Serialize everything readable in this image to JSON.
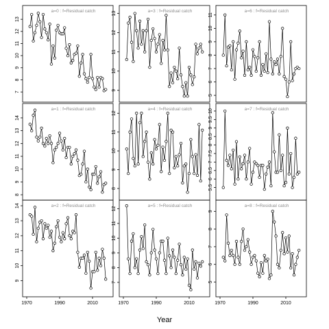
{
  "figure": {
    "xlabel": "Year"
  },
  "chart_data": [
    {
      "panel": "a0",
      "type": "line",
      "label": "a=0 : f=Residual catch",
      "xlim": [
        1970,
        2020
      ],
      "ylim": [
        6.5,
        13.8
      ],
      "yticks": [
        7,
        8,
        9,
        10,
        11,
        12,
        13
      ],
      "xticks": [
        1970,
        1990,
        2010
      ],
      "show_xticks": false,
      "x": [
        1972,
        1973,
        1974,
        1975,
        1976,
        1977,
        1978,
        1979,
        1980,
        1981,
        1982,
        1983,
        1984,
        1985,
        1986,
        1987,
        1988,
        1989,
        1990,
        1991,
        1992,
        1993,
        1994,
        1995,
        1996,
        1997,
        1998,
        1999,
        2000,
        2001,
        2002,
        2003,
        2004,
        2005,
        2006,
        2007,
        2008,
        2009,
        2010,
        2011,
        2012,
        2013,
        2014,
        2015,
        2016,
        2017,
        2018
      ],
      "y": [
        12.4,
        13.4,
        11.2,
        11.9,
        12.5,
        13.5,
        12.8,
        11.5,
        13.4,
        12.2,
        11.9,
        11.3,
        12.6,
        9.3,
        10.8,
        9.8,
        12.1,
        12.5,
        11.9,
        11.8,
        11.8,
        12.3,
        10.6,
        10.0,
        10.9,
        9.4,
        9.6,
        10.1,
        10.2,
        10.8,
        8.3,
        9.4,
        10.1,
        8.5,
        8.1,
        7.8,
        8.2,
        10.1,
        8.1,
        7.4,
        7.2,
        8.2,
        7.4,
        8.2,
        8.1,
        7.1,
        7.2
      ]
    },
    {
      "panel": "a3",
      "type": "line",
      "label": "a=3 : f=Residual catch",
      "xlim": [
        1970,
        2020
      ],
      "ylim": [
        8.6,
        13.2
      ],
      "yticks": [
        9,
        10,
        11,
        12,
        13
      ],
      "xticks": [
        1970,
        1990,
        2010
      ],
      "show_xticks": false,
      "x": [
        1972,
        1973,
        1974,
        1975,
        1976,
        1977,
        1978,
        1979,
        1980,
        1981,
        1982,
        1983,
        1984,
        1985,
        1986,
        1987,
        1988,
        1989,
        1990,
        1991,
        1992,
        1993,
        1994,
        1995,
        1996,
        1997,
        1998,
        1999,
        2000,
        2001,
        2002,
        2003,
        2004,
        2005,
        2006,
        2007,
        2008,
        2009,
        2010,
        2011,
        2012,
        2013,
        2014,
        2015,
        2016,
        2017,
        2018
      ],
      "y": [
        10.6,
        12.5,
        12.8,
        11.5,
        10.5,
        13.0,
        12.1,
        11.2,
        12.6,
        11.4,
        12.1,
        11.0,
        12.1,
        12.7,
        10.2,
        11.6,
        12.2,
        11.7,
        11.0,
        11.4,
        11.9,
        10.4,
        11.6,
        11.1,
        12.9,
        11.1,
        9.2,
        9.9,
        9.4,
        10.2,
        10.0,
        9.6,
        11.2,
        9.8,
        9.2,
        8.7,
        9.4,
        8.7,
        10.2,
        9.8,
        9.3,
        9.7,
        11.4,
        10.9,
        11.2,
        11.4,
        11.0
      ]
    },
    {
      "panel": "a6",
      "type": "line",
      "label": "a=6 : f=Residual catch",
      "xlim": [
        1970,
        2020
      ],
      "ylim": [
        4.8,
        11.4
      ],
      "yticks": [
        5,
        6,
        7,
        8,
        9,
        10,
        11
      ],
      "xticks": [
        1970,
        1990,
        2010
      ],
      "show_xticks": false,
      "x": [
        1972,
        1973,
        1974,
        1975,
        1976,
        1977,
        1978,
        1979,
        1980,
        1981,
        1982,
        1983,
        1984,
        1985,
        1986,
        1987,
        1988,
        1989,
        1990,
        1991,
        1992,
        1993,
        1994,
        1995,
        1996,
        1997,
        1998,
        1999,
        2000,
        2001,
        2002,
        2003,
        2004,
        2005,
        2006,
        2007,
        2008,
        2009,
        2010,
        2011,
        2012,
        2013,
        2014,
        2015,
        2016,
        2017,
        2018
      ],
      "y": [
        8.0,
        11.0,
        7.2,
        8.6,
        8.7,
        6.9,
        9.0,
        6.2,
        8.4,
        8.9,
        9.8,
        7.8,
        8.3,
        6.5,
        9.0,
        6.9,
        7.1,
        6.5,
        8.4,
        7.9,
        6.8,
        7.8,
        9.0,
        6.5,
        7.3,
        6.8,
        8.1,
        6.7,
        10.5,
        7.7,
        6.6,
        7.5,
        7.3,
        7.7,
        6.6,
        7.9,
        10.0,
        6.4,
        6.2,
        4.9,
        6.0,
        9.0,
        6.1,
        6.6,
        7.0,
        7.1,
        7.0
      ]
    },
    {
      "panel": "a1",
      "type": "line",
      "label": "a=1 : f=Residual catch",
      "xlim": [
        1970,
        2020
      ],
      "ylim": [
        7.9,
        14.8
      ],
      "yticks": [
        8,
        9,
        10,
        11,
        12,
        13,
        14
      ],
      "xticks": [
        1970,
        1990,
        2010
      ],
      "show_xticks": false,
      "x": [
        1972,
        1973,
        1974,
        1975,
        1976,
        1977,
        1978,
        1979,
        1980,
        1981,
        1982,
        1983,
        1984,
        1985,
        1986,
        1987,
        1988,
        1989,
        1990,
        1991,
        1992,
        1993,
        1994,
        1995,
        1996,
        1997,
        1998,
        1999,
        2000,
        2001,
        2002,
        2003,
        2004,
        2005,
        2006,
        2007,
        2008,
        2009,
        2010,
        2011,
        2012,
        2013,
        2014,
        2015,
        2016,
        2017,
        2018
      ],
      "y": [
        13.5,
        13.0,
        14.2,
        14.6,
        12.5,
        12.2,
        12.5,
        13.2,
        12.0,
        11.8,
        12.4,
        12.0,
        12.6,
        12.0,
        10.5,
        11.5,
        11.7,
        12.0,
        12.8,
        12.2,
        11.5,
        12.4,
        10.9,
        11.7,
        11.7,
        10.4,
        11.0,
        11.2,
        11.5,
        10.7,
        9.5,
        9.6,
        10.4,
        11.4,
        9.0,
        10.0,
        8.6,
        8.4,
        9.6,
        9.6,
        10.2,
        8.9,
        9.4,
        9.8,
        8.2,
        8.8,
        8.9
      ]
    },
    {
      "panel": "a4",
      "type": "line",
      "label": "a=4 : f=Residual catch",
      "xlim": [
        1970,
        2020
      ],
      "ylim": [
        7.6,
        12.3
      ],
      "yticks": [
        8,
        9,
        10,
        11,
        12
      ],
      "xticks": [
        1970,
        1990,
        2010
      ],
      "show_xticks": false,
      "x": [
        1972,
        1973,
        1974,
        1975,
        1976,
        1977,
        1978,
        1979,
        1980,
        1981,
        1982,
        1983,
        1984,
        1985,
        1986,
        1987,
        1988,
        1989,
        1990,
        1991,
        1992,
        1993,
        1994,
        1995,
        1996,
        1997,
        1998,
        1999,
        2000,
        2001,
        2002,
        2003,
        2004,
        2005,
        2006,
        2007,
        2008,
        2009,
        2010,
        2011,
        2012,
        2013,
        2014,
        2015,
        2016,
        2017,
        2018
      ],
      "y": [
        10.1,
        8.8,
        11.0,
        11.7,
        9.6,
        9.2,
        12.0,
        9.3,
        11.5,
        12.0,
        9.7,
        10.5,
        11.0,
        9.4,
        8.5,
        9.9,
        9.3,
        10.6,
        10.1,
        10.3,
        11.4,
        8.9,
        10.2,
        9.5,
        10.5,
        12.0,
        8.8,
        11.1,
        11.0,
        9.1,
        9.7,
        9.2,
        9.8,
        10.4,
        8.3,
        9.2,
        9.3,
        7.8,
        8.8,
        10.6,
        9.7,
        8.8,
        9.8,
        8.7,
        11.4,
        8.4,
        11.1
      ]
    },
    {
      "panel": "a7",
      "type": "line",
      "label": "a=7 : f=Residual catch",
      "xlim": [
        1970,
        2020
      ],
      "ylim": [
        5.0,
        10.2
      ],
      "yticks": [
        5.5,
        6,
        6.5,
        7,
        7.5,
        8,
        8.5,
        9,
        9.5,
        10
      ],
      "xticks": [
        1970,
        1990,
        2010
      ],
      "show_xticks": false,
      "x": [
        1972,
        1973,
        1974,
        1975,
        1976,
        1977,
        1978,
        1979,
        1980,
        1981,
        1982,
        1983,
        1984,
        1985,
        1986,
        1987,
        1988,
        1989,
        1990,
        1991,
        1992,
        1993,
        1994,
        1995,
        1996,
        1997,
        1998,
        1999,
        2000,
        2001,
        2002,
        2003,
        2004,
        2005,
        2006,
        2007,
        2008,
        2009,
        2010,
        2011,
        2012,
        2013,
        2014,
        2015,
        2016,
        2017,
        2018
      ],
      "y": [
        5.5,
        10.0,
        7.1,
        6.8,
        7.4,
        6.6,
        7.7,
        5.7,
        8.2,
        6.0,
        7.3,
        6.6,
        6.9,
        7.4,
        6.0,
        7.0,
        7.8,
        5.7,
        6.4,
        7.0,
        6.9,
        6.8,
        6.1,
        6.8,
        6.8,
        5.4,
        6.3,
        6.7,
        7.0,
        5.6,
        9.9,
        7.6,
        6.4,
        6.4,
        8.6,
        6.5,
        7.4,
        5.6,
        5.8,
        9.0,
        6.3,
        7.5,
        5.5,
        6.1,
        8.4,
        6.3,
        6.4
      ]
    },
    {
      "panel": "a2",
      "type": "line",
      "label": "a=2 : f=Residual catch",
      "xlim": [
        1970,
        2020
      ],
      "ylim": [
        8.2,
        14.1
      ],
      "yticks": [
        9,
        10,
        11,
        12,
        13,
        14
      ],
      "xticks": [
        1970,
        1990,
        2010
      ],
      "show_xticks": true,
      "x": [
        1972,
        1973,
        1974,
        1975,
        1976,
        1977,
        1978,
        1979,
        1980,
        1981,
        1982,
        1983,
        1984,
        1985,
        1986,
        1987,
        1988,
        1989,
        1990,
        1991,
        1992,
        1993,
        1994,
        1995,
        1996,
        1997,
        1998,
        1999,
        2000,
        2001,
        2002,
        2003,
        2004,
        2005,
        2006,
        2007,
        2008,
        2009,
        2010,
        2011,
        2012,
        2013,
        2014,
        2015,
        2016,
        2017,
        2018
      ],
      "y": [
        13.4,
        13.3,
        12.1,
        13.9,
        11.6,
        12.5,
        12.9,
        13.0,
        11.8,
        12.8,
        12.5,
        12.7,
        11.9,
        12.3,
        11.0,
        11.5,
        12.6,
        13.0,
        11.9,
        11.6,
        12.2,
        11.8,
        12.8,
        13.2,
        12.0,
        11.8,
        12.3,
        12.2,
        13.4,
        10.9,
        9.9,
        10.5,
        10.5,
        10.7,
        9.5,
        10.9,
        10.3,
        8.5,
        9.6,
        9.6,
        10.9,
        9.7,
        10.5,
        10.0,
        11.1,
        10.5,
        9.1
      ]
    },
    {
      "panel": "a5",
      "type": "line",
      "label": "a=5 : f=Residual catch",
      "xlim": [
        1970,
        2020
      ],
      "ylim": [
        6.3,
        12.3
      ],
      "yticks": [
        7,
        8,
        9,
        10,
        11,
        12
      ],
      "xticks": [
        1970,
        1990,
        2010
      ],
      "show_xticks": true,
      "x": [
        1972,
        1973,
        1974,
        1975,
        1976,
        1977,
        1978,
        1979,
        1980,
        1981,
        1982,
        1983,
        1984,
        1985,
        1986,
        1987,
        1988,
        1989,
        1990,
        1991,
        1992,
        1993,
        1994,
        1995,
        1996,
        1997,
        1998,
        1999,
        2000,
        2001,
        2002,
        2003,
        2004,
        2005,
        2006,
        2007,
        2008,
        2009,
        2010,
        2011,
        2012,
        2013,
        2014,
        2015,
        2016,
        2017,
        2018
      ],
      "y": [
        12.2,
        8.6,
        7.6,
        9.8,
        10.3,
        8.0,
        8.6,
        7.6,
        9.2,
        10.1,
        9.3,
        10.9,
        8.4,
        8.2,
        7.5,
        9.0,
        10.6,
        9.2,
        8.6,
        7.6,
        9.0,
        9.8,
        9.8,
        8.5,
        7.6,
        10.0,
        8.8,
        8.0,
        9.2,
        8.7,
        7.6,
        8.5,
        9.6,
        8.2,
        7.5,
        8.7,
        7.9,
        8.6,
        6.8,
        6.5,
        9.2,
        7.9,
        8.4,
        7.3,
        8.3,
        8.1,
        8.4
      ]
    },
    {
      "panel": "a8",
      "type": "line",
      "label": "a=8 : f=Residual catch",
      "xlim": [
        1970,
        2020
      ],
      "ylim": [
        4.4,
        9.4
      ],
      "yticks": [
        5,
        6,
        7,
        8,
        9
      ],
      "xticks": [
        1970,
        1990,
        2010
      ],
      "show_xticks": true,
      "x": [
        1972,
        1973,
        1974,
        1975,
        1976,
        1977,
        1978,
        1979,
        1980,
        1981,
        1982,
        1983,
        1984,
        1985,
        1986,
        1987,
        1988,
        1989,
        1990,
        1991,
        1992,
        1993,
        1994,
        1995,
        1996,
        1997,
        1998,
        1999,
        2000,
        2001,
        2002,
        2003,
        2004,
        2005,
        2006,
        2007,
        2008,
        2009,
        2010,
        2011,
        2012,
        2013,
        2014,
        2015,
        2016,
        2017,
        2018
      ],
      "y": [
        6.4,
        6.2,
        8.8,
        7.2,
        6.5,
        6.8,
        6.5,
        6.0,
        7.3,
        6.4,
        6.0,
        7.3,
        8.0,
        6.8,
        7.0,
        7.4,
        6.7,
        6.0,
        6.4,
        6.5,
        6.2,
        5.5,
        5.3,
        6.1,
        5.5,
        6.5,
        6.2,
        6.3,
        5.2,
        5.4,
        9.0,
        8.4,
        7.6,
        6.0,
        5.8,
        6.8,
        7.8,
        6.6,
        7.5,
        6.7,
        7.6,
        5.8,
        6.6,
        5.4,
        6.0,
        6.4,
        6.8
      ]
    }
  ]
}
